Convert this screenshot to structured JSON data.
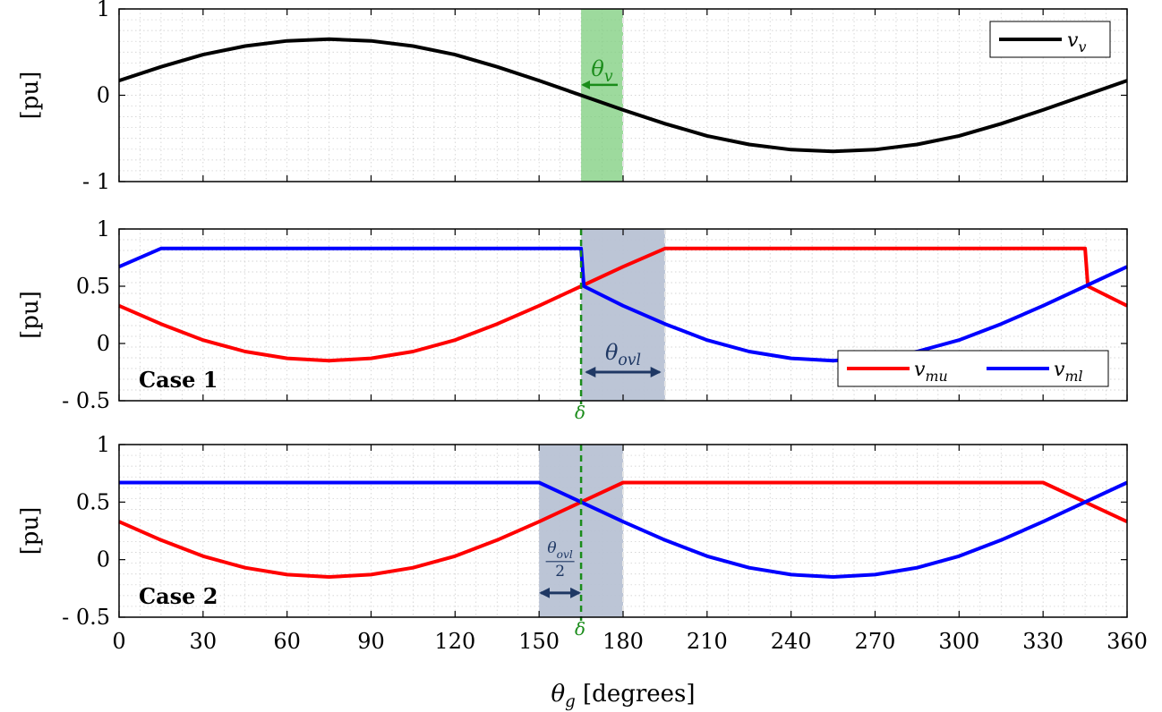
{
  "chart_data": [
    {
      "type": "line",
      "ylabel": "[pu]",
      "xlim": [
        0,
        360
      ],
      "ylim": [
        -1,
        1
      ],
      "yticks": [
        {
          "value": 1,
          "label": "1"
        },
        {
          "value": 0,
          "label": "0"
        },
        {
          "value": -1,
          "label": "- 1"
        }
      ],
      "grid": true,
      "legend_position": "top-right",
      "series": [
        {
          "name": "v_v",
          "legend_main": "v",
          "legend_sub": "v",
          "color": "#000000",
          "x": [
            0,
            15,
            30,
            45,
            60,
            75,
            90,
            105,
            120,
            135,
            150,
            165,
            180,
            195,
            210,
            225,
            240,
            255,
            270,
            285,
            300,
            315,
            330,
            345,
            360
          ],
          "y": [
            0.17,
            0.33,
            0.47,
            0.57,
            0.63,
            0.65,
            0.63,
            0.57,
            0.47,
            0.33,
            0.17,
            0.0,
            -0.17,
            -0.33,
            -0.47,
            -0.57,
            -0.63,
            -0.65,
            -0.63,
            -0.57,
            -0.47,
            -0.33,
            -0.17,
            0.0,
            0.17
          ]
        }
      ],
      "shaded_region": {
        "x": [
          165,
          180
        ],
        "color": "#7ccd7c"
      },
      "annotation": {
        "main": "θ",
        "sub": "v",
        "arrow_from": 180,
        "arrow_to": 165,
        "y": 0.12,
        "color": "#1a8c1a"
      }
    },
    {
      "type": "line",
      "ylabel": "[pu]",
      "xlim": [
        0,
        360
      ],
      "ylim": [
        -0.5,
        1
      ],
      "yticks": [
        {
          "value": 1,
          "label": "1"
        },
        {
          "value": 0.5,
          "label": "0.5"
        },
        {
          "value": 0,
          "label": "0"
        },
        {
          "value": -0.5,
          "label": "- 0.5"
        }
      ],
      "grid": true,
      "legend_position": "bottom-right",
      "case_label": "Case 1",
      "series": [
        {
          "name": "v_mu",
          "legend_main": "v",
          "legend_sub": "mu",
          "color": "#ff0000",
          "x": [
            0,
            15,
            30,
            45,
            60,
            75,
            90,
            105,
            120,
            135,
            150,
            165,
            180,
            195,
            345,
            346,
            360
          ],
          "y": [
            0.33,
            0.17,
            0.03,
            -0.07,
            -0.13,
            -0.15,
            -0.13,
            -0.07,
            0.03,
            0.17,
            0.33,
            0.5,
            0.67,
            0.83,
            0.83,
            0.5,
            0.33
          ]
        },
        {
          "name": "v_ml",
          "legend_main": "v",
          "legend_sub": "ml",
          "color": "#0000ff",
          "x": [
            0,
            15,
            165,
            166,
            180,
            195,
            210,
            225,
            240,
            255,
            270,
            285,
            300,
            315,
            330,
            345,
            360
          ],
          "y": [
            0.67,
            0.83,
            0.83,
            0.5,
            0.33,
            0.17,
            0.03,
            -0.07,
            -0.13,
            -0.15,
            -0.13,
            -0.07,
            0.03,
            0.17,
            0.33,
            0.5,
            0.67
          ]
        }
      ],
      "shaded_region": {
        "x": [
          165,
          195
        ],
        "color": "#b8c2d4"
      },
      "vline": {
        "x": 165,
        "label": "δ",
        "color": "#1a8c1a"
      },
      "annotation": {
        "main": "θ",
        "sub": "ovl",
        "arrow_from": 167,
        "arrow_to": 193,
        "y": -0.25,
        "color": "#1f3864"
      }
    },
    {
      "type": "line",
      "ylabel": "[pu]",
      "xlabel_main": "θ",
      "xlabel_sub": "g",
      "xlabel_rest": "[degrees]",
      "xlim": [
        0,
        360
      ],
      "ylim": [
        -0.5,
        1
      ],
      "xticks": [
        0,
        30,
        60,
        90,
        120,
        150,
        180,
        210,
        240,
        270,
        300,
        330,
        360
      ],
      "yticks": [
        {
          "value": 1,
          "label": "1"
        },
        {
          "value": 0.5,
          "label": "0.5"
        },
        {
          "value": 0,
          "label": "0"
        },
        {
          "value": -0.5,
          "label": "- 0.5"
        }
      ],
      "grid": true,
      "case_label": "Case 2",
      "series": [
        {
          "name": "v_mu",
          "color": "#ff0000",
          "x": [
            0,
            15,
            30,
            45,
            60,
            75,
            90,
            105,
            120,
            135,
            150,
            165,
            180,
            330,
            345,
            360
          ],
          "y": [
            0.33,
            0.17,
            0.03,
            -0.07,
            -0.13,
            -0.15,
            -0.13,
            -0.07,
            0.03,
            0.17,
            0.33,
            0.5,
            0.67,
            0.67,
            0.5,
            0.33
          ]
        },
        {
          "name": "v_ml",
          "color": "#0000ff",
          "x": [
            0,
            150,
            165,
            180,
            195,
            210,
            225,
            240,
            255,
            270,
            285,
            300,
            315,
            330,
            345,
            360
          ],
          "y": [
            0.67,
            0.67,
            0.5,
            0.33,
            0.17,
            0.03,
            -0.07,
            -0.13,
            -0.15,
            -0.13,
            -0.07,
            0.03,
            0.17,
            0.33,
            0.5,
            0.67
          ]
        }
      ],
      "shaded_region": {
        "x": [
          150,
          180
        ],
        "color": "#b8c2d4"
      },
      "vline": {
        "x": 165,
        "label": "δ",
        "color": "#1a8c1a"
      },
      "annotation": {
        "num_main": "θ",
        "num_sub": "ovl",
        "den": "2",
        "arrow_from": 150,
        "arrow_to": 165,
        "y": -0.25,
        "color": "#1f3864"
      }
    }
  ]
}
